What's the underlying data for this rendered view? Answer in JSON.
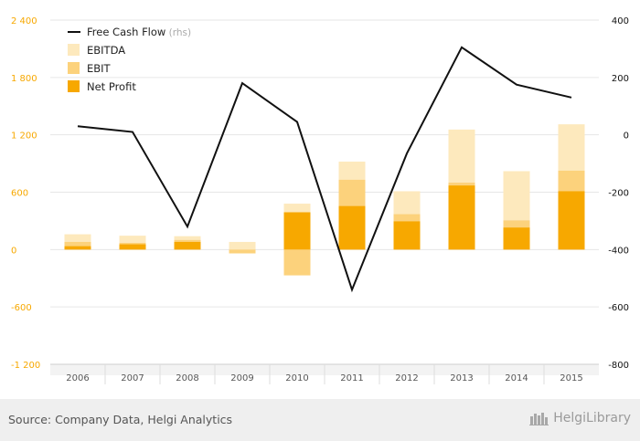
{
  "chart_data": {
    "type": "bar",
    "categories": [
      "2006",
      "2007",
      "2008",
      "2009",
      "2010",
      "2011",
      "2012",
      "2013",
      "2014",
      "2015"
    ],
    "series": [
      {
        "name": "EBITDA",
        "kind": "bar",
        "axis": "left",
        "color": "#fde9bd",
        "values": [
          160,
          145,
          140,
          80,
          480,
          920,
          610,
          1255,
          820,
          1310
        ]
      },
      {
        "name": "EBIT",
        "kind": "bar",
        "axis": "left",
        "color": "#fcd27c",
        "values": [
          80,
          70,
          100,
          -40,
          -270,
          730,
          370,
          700,
          305,
          825
        ]
      },
      {
        "name": "Net Profit",
        "kind": "bar",
        "axis": "left",
        "color": "#f7a800",
        "values": [
          35,
          55,
          80,
          0,
          390,
          455,
          295,
          670,
          230,
          610
        ]
      },
      {
        "name": "Free Cash Flow",
        "name_suffix": "(rhs)",
        "kind": "line",
        "axis": "right",
        "color": "#111111",
        "values": [
          30,
          10,
          -320,
          180,
          45,
          -540,
          -65,
          305,
          175,
          130
        ]
      }
    ],
    "ylim_left": [
      -1200,
      2400
    ],
    "yticks_left": [
      -1200,
      -600,
      0,
      600,
      1200,
      1800,
      2400
    ],
    "yticklabels_left": [
      "-1 200",
      "-600",
      "0",
      "600",
      "1 200",
      "1 800",
      "2 400"
    ],
    "ylim_right": [
      -800,
      400
    ],
    "yticks_right": [
      -800,
      -600,
      -400,
      -200,
      0,
      200,
      400
    ],
    "yticklabels_right": [
      "-800",
      "-600",
      "-400",
      "-200",
      "0",
      "200",
      "400"
    ],
    "left_axis_color": "#f7a800",
    "grid": "horizontal",
    "legend": "top-left"
  },
  "footer": {
    "source": "Source: Company Data, Helgi Analytics",
    "brand": "HelgiLibrary"
  }
}
